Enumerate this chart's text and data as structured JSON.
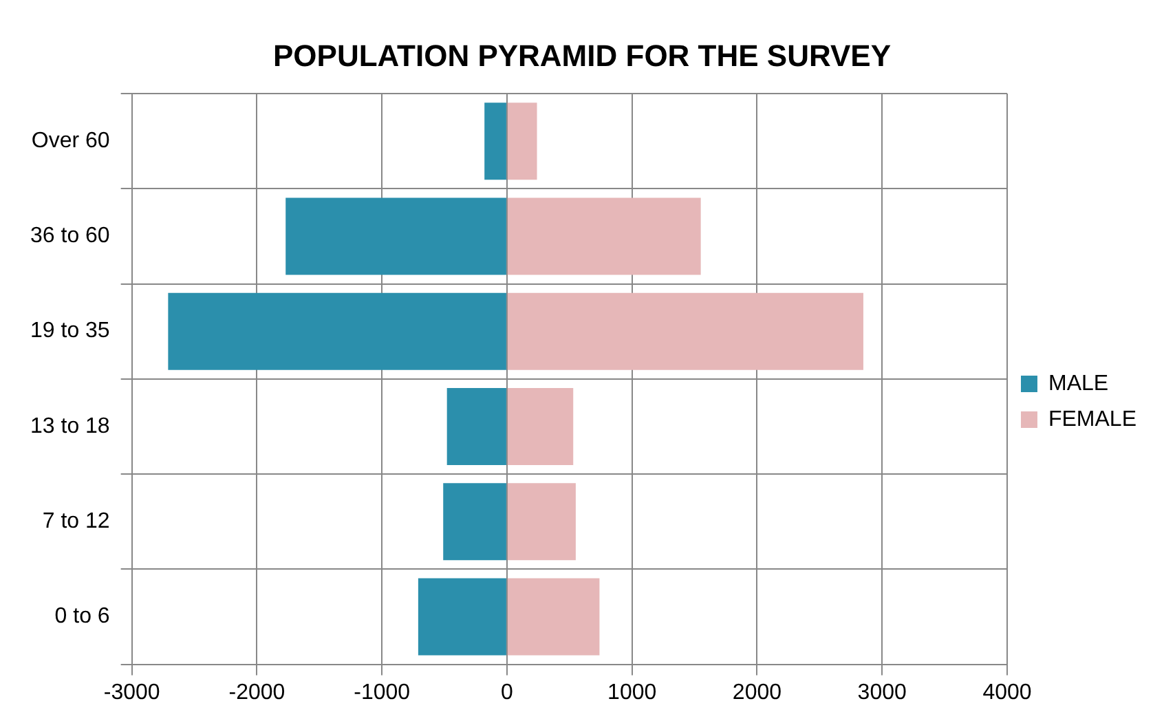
{
  "chart_data": {
    "type": "bar",
    "title": "POPULATION PYRAMID FOR THE SURVEY",
    "orientation": "horizontal",
    "stacked": true,
    "categories": [
      "Over 60",
      "36 to 60",
      "19 to 35",
      "13 to 18",
      "7 to 12",
      "0 to 6"
    ],
    "series": [
      {
        "name": "MALE",
        "color": "#2b8fac",
        "values": [
          -180,
          -1770,
          -2710,
          -480,
          -510,
          -710
        ]
      },
      {
        "name": "FEMALE",
        "color": "#e6b7b8",
        "values": [
          240,
          1550,
          2850,
          530,
          550,
          740
        ]
      }
    ],
    "xlim": [
      -3000,
      4000
    ],
    "xticks": [
      -3000,
      -2000,
      -1000,
      0,
      1000,
      2000,
      3000,
      4000
    ],
    "grid": true,
    "legend": "right"
  }
}
